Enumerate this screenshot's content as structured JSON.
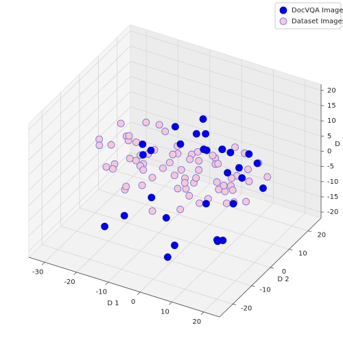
{
  "chart_data": {
    "type": "scatter3d",
    "xlabel": "D 1",
    "ylabel": "D 2",
    "zlabel": "D",
    "xlim": [
      -35,
      25
    ],
    "ylim": [
      -27,
      27
    ],
    "zlim": [
      -22,
      22
    ],
    "xticks": [
      -30,
      -20,
      -10,
      0,
      10,
      20
    ],
    "yticks": [
      -20,
      -10,
      0,
      10,
      20
    ],
    "zticks": [
      -20,
      -15,
      -10,
      -5,
      0,
      5,
      10,
      15,
      20
    ],
    "grid": true,
    "legend": "upper right",
    "series": [
      {
        "name": "Dataset Images",
        "color": "#f4c8da",
        "edgecolor": "#6b6bd6",
        "x": [
          -30,
          -28,
          -27,
          -25,
          -24,
          -22,
          -21,
          -20,
          -19,
          -18,
          -17,
          -16,
          -15,
          -14,
          -13,
          -12,
          -11,
          -10,
          -9,
          -8,
          -7,
          -6,
          -5,
          -4,
          -3,
          -2,
          -1,
          0,
          1,
          2,
          3,
          4,
          5,
          6,
          7,
          8,
          9,
          10,
          11,
          12,
          13,
          14,
          15,
          16,
          17,
          18,
          -26,
          -23,
          -18,
          -14,
          -10,
          -6,
          -2,
          2,
          6,
          10,
          14,
          -20,
          -12,
          -4,
          4,
          12,
          -16,
          -8,
          0,
          8,
          16,
          -22,
          -5,
          5
        ],
        "y": [
          2,
          5,
          -3,
          8,
          0,
          4,
          -6,
          10,
          3,
          -2,
          12,
          -8,
          6,
          1,
          15,
          -5,
          9,
          -10,
          4,
          14,
          -3,
          7,
          -12,
          11,
          0,
          5,
          -7,
          13,
          2,
          -9,
          8,
          -4,
          16,
          -11,
          3,
          10,
          -6,
          6,
          -14,
          1,
          9,
          -2,
          4,
          -8,
          12,
          0,
          -1,
          6,
          -4,
          10,
          -9,
          3,
          15,
          -6,
          8,
          -3,
          5,
          7,
          -5,
          11,
          -10,
          2,
          -2,
          13,
          -7,
          4,
          9,
          0,
          -12,
          6
        ],
        "z": [
          1,
          -2,
          3,
          0,
          -4,
          2,
          -1,
          5,
          -3,
          1,
          4,
          -5,
          0,
          2,
          -6,
          3,
          -2,
          6,
          -1,
          -4,
          2,
          -7,
          5,
          -3,
          1,
          -6,
          4,
          -2,
          7,
          -5,
          0,
          3,
          -8,
          2,
          -4,
          6,
          -1,
          -9,
          3,
          0,
          -3,
          5,
          -6,
          1,
          -2,
          8,
          -5,
          2,
          -7,
          4,
          -1,
          6,
          -3,
          0,
          -8,
          3,
          9,
          -4,
          1,
          -6,
          5,
          -2,
          7,
          -5,
          0,
          -3,
          4,
          10,
          -6,
          2
        ]
      },
      {
        "name": "DocVQA Images",
        "color": "#0000ee",
        "edgecolor": "#0000aa",
        "x": [
          -18,
          -15,
          -12,
          -10,
          -8,
          -5,
          -3,
          0,
          2,
          4,
          6,
          8,
          10,
          12,
          14,
          16,
          18,
          -20,
          -6,
          1,
          5,
          9,
          13,
          -14,
          -2,
          7,
          11,
          15,
          3,
          -9
        ],
        "y": [
          5,
          -10,
          12,
          -4,
          8,
          15,
          -8,
          3,
          -12,
          10,
          -2,
          6,
          14,
          -6,
          2,
          -10,
          8,
          -12,
          18,
          -14,
          0,
          12,
          -8,
          -2,
          20,
          -5,
          4,
          10,
          16,
          -6
        ],
        "z": [
          -2,
          -12,
          5,
          -8,
          3,
          8,
          -10,
          12,
          -15,
          4,
          -6,
          0,
          2,
          -14,
          6,
          -10,
          -3,
          -16,
          1,
          -18,
          10,
          -5,
          -12,
          7,
          -4,
          14,
          -8,
          3,
          -1,
          9
        ]
      }
    ]
  }
}
